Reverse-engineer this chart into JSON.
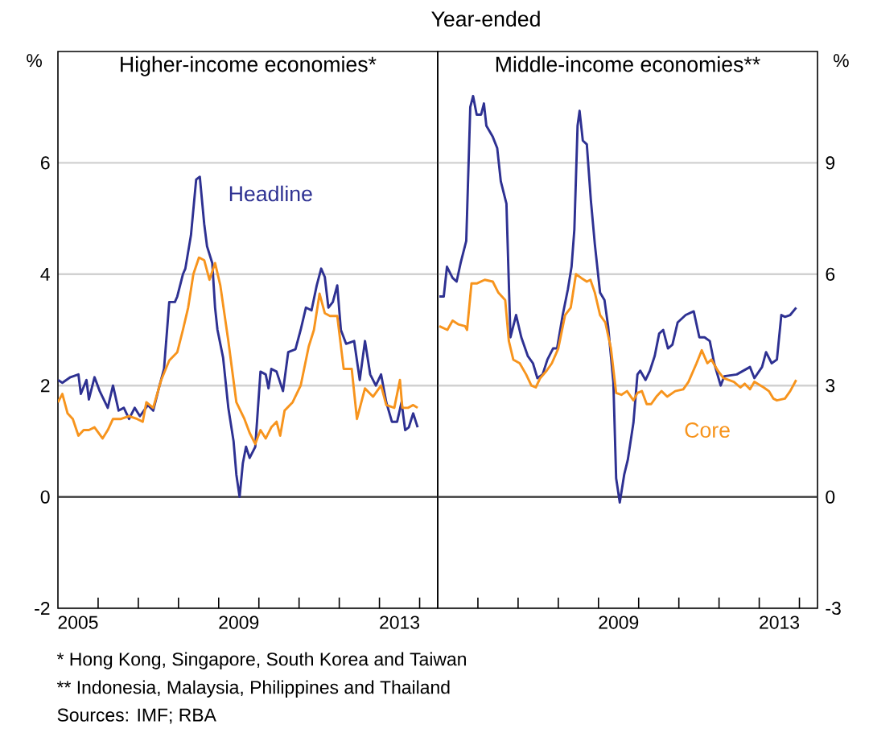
{
  "chart_data": [
    {
      "type": "line",
      "subtitle": "Higher-income economies*",
      "ylabel": "%",
      "xlim": [
        2005,
        2014.45
      ],
      "ylim": [
        -2,
        8
      ],
      "xticks": [
        {
          "value": 2005.5,
          "label": "2005"
        },
        {
          "value": 2006,
          "label": null
        },
        {
          "value": 2007,
          "label": null
        },
        {
          "value": 2008,
          "label": null
        },
        {
          "value": 2009,
          "label": null
        },
        {
          "value": 2009.5,
          "label": "2009"
        },
        {
          "value": 2010,
          "label": null
        },
        {
          "value": 2011,
          "label": null
        },
        {
          "value": 2012,
          "label": null
        },
        {
          "value": 2013,
          "label": null
        },
        {
          "value": 2013.5,
          "label": "2013"
        },
        {
          "value": 2014,
          "label": null
        }
      ],
      "yticks": [
        -2,
        0,
        2,
        4,
        6
      ],
      "grid": "y",
      "ref_lines": [
        {
          "axis": "y",
          "value": 0
        }
      ],
      "series": [
        {
          "name": "Headline",
          "color": "#2e3192",
          "x": [
            2005.0,
            2005.11,
            2005.31,
            2005.51,
            2005.57,
            2005.71,
            2005.77,
            2005.91,
            2006.04,
            2006.24,
            2006.37,
            2006.51,
            2006.64,
            2006.77,
            2006.91,
            2007.04,
            2007.24,
            2007.37,
            2007.51,
            2007.64,
            2007.77,
            2007.91,
            2007.97,
            2008.11,
            2008.17,
            2008.31,
            2008.44,
            2008.53,
            2008.64,
            2008.71,
            2008.84,
            2008.91,
            2008.97,
            2009.11,
            2009.24,
            2009.37,
            2009.44,
            2009.52,
            2009.6,
            2009.68,
            2009.77,
            2009.91,
            2010.04,
            2010.17,
            2010.24,
            2010.31,
            2010.44,
            2010.6,
            2010.73,
            2010.91,
            2011.04,
            2011.17,
            2011.31,
            2011.44,
            2011.55,
            2011.64,
            2011.73,
            2011.84,
            2011.95,
            2012.04,
            2012.17,
            2012.37,
            2012.51,
            2012.64,
            2012.77,
            2012.91,
            2013.04,
            2013.17,
            2013.31,
            2013.44,
            2013.55,
            2013.64,
            2013.73,
            2013.84,
            2013.95
          ],
          "values": [
            2.1,
            2.05,
            2.15,
            2.2,
            1.85,
            2.1,
            1.75,
            2.15,
            1.9,
            1.6,
            2.0,
            1.55,
            1.6,
            1.4,
            1.6,
            1.45,
            1.65,
            1.55,
            1.95,
            2.3,
            3.5,
            3.5,
            3.6,
            4.0,
            4.1,
            4.7,
            5.7,
            5.75,
            4.9,
            4.5,
            4.2,
            3.4,
            3.0,
            2.5,
            1.6,
            1.0,
            0.4,
            0.0,
            0.6,
            0.9,
            0.7,
            0.9,
            2.25,
            2.2,
            1.95,
            2.3,
            2.25,
            1.9,
            2.6,
            2.65,
            3.0,
            3.4,
            3.35,
            3.8,
            4.1,
            3.95,
            3.4,
            3.5,
            3.8,
            3.0,
            2.75,
            2.8,
            2.1,
            2.8,
            2.2,
            2.0,
            2.2,
            1.7,
            1.35,
            1.35,
            1.7,
            1.2,
            1.25,
            1.5,
            1.25
          ]
        },
        {
          "color": "#f7941d",
          "x": [
            2005.0,
            2005.11,
            2005.24,
            2005.37,
            2005.51,
            2005.64,
            2005.77,
            2005.91,
            2006.11,
            2006.24,
            2006.37,
            2006.57,
            2006.77,
            2006.97,
            2007.11,
            2007.2,
            2007.37,
            2007.57,
            2007.77,
            2007.97,
            2008.11,
            2008.24,
            2008.37,
            2008.51,
            2008.64,
            2008.77,
            2008.91,
            2009.04,
            2009.24,
            2009.44,
            2009.64,
            2009.77,
            2009.91,
            2010.04,
            2010.17,
            2010.31,
            2010.44,
            2010.53,
            2010.64,
            2010.84,
            2011.04,
            2011.24,
            2011.37,
            2011.51,
            2011.64,
            2011.77,
            2011.95,
            2012.11,
            2012.31,
            2012.44,
            2012.64,
            2012.84,
            2013.04,
            2013.17,
            2013.37,
            2013.51,
            2013.57,
            2013.71,
            2013.84,
            2013.95
          ],
          "values": [
            1.7,
            1.85,
            1.5,
            1.4,
            1.1,
            1.2,
            1.2,
            1.25,
            1.05,
            1.2,
            1.4,
            1.4,
            1.45,
            1.4,
            1.35,
            1.7,
            1.6,
            2.1,
            2.45,
            2.6,
            3.0,
            3.4,
            4.0,
            4.3,
            4.25,
            3.9,
            4.2,
            3.8,
            2.8,
            1.7,
            1.4,
            1.15,
            0.95,
            1.2,
            1.05,
            1.25,
            1.35,
            1.1,
            1.55,
            1.7,
            2.0,
            2.7,
            3.0,
            3.65,
            3.3,
            3.25,
            3.25,
            2.3,
            2.3,
            1.4,
            1.95,
            1.8,
            2.0,
            1.65,
            1.6,
            2.1,
            1.6,
            1.6,
            1.65,
            1.6
          ]
        }
      ],
      "annotations": [
        "*   Hong Kong, Singapore, South Korea and Taiwan",
        "**  Indonesia, Malaysia, Philippines and Thailand",
        "Sources: IMF; RBA"
      ]
    },
    {
      "type": "line",
      "title": "Year-ended",
      "subtitle": "Middle-income economies**",
      "ylabel": "%",
      "xlim": [
        2005,
        2014.45
      ],
      "ylim": [
        -3,
        12
      ],
      "xticks": [
        {
          "value": 2006,
          "label": null
        },
        {
          "value": 2007,
          "label": null
        },
        {
          "value": 2008,
          "label": null
        },
        {
          "value": 2009,
          "label": null
        },
        {
          "value": 2009.5,
          "label": "2009"
        },
        {
          "value": 2010,
          "label": null
        },
        {
          "value": 2011,
          "label": null
        },
        {
          "value": 2012,
          "label": null
        },
        {
          "value": 2013,
          "label": null
        },
        {
          "value": 2013.5,
          "label": "2013"
        },
        {
          "value": 2014,
          "label": null
        }
      ],
      "yticks": [
        -3,
        0,
        3,
        6,
        9
      ],
      "grid": "y",
      "ref_lines": [
        {
          "axis": "y",
          "value": 0
        }
      ],
      "series": [
        {
          "color": "#2e3192",
          "x": [
            2005.04,
            2005.15,
            2005.23,
            2005.37,
            2005.47,
            2005.57,
            2005.71,
            2005.81,
            2005.88,
            2005.97,
            2006.08,
            2006.15,
            2006.21,
            2006.37,
            2006.48,
            2006.57,
            2006.71,
            2006.81,
            2006.95,
            2007.08,
            2007.24,
            2007.37,
            2007.48,
            2007.61,
            2007.73,
            2007.87,
            2007.97,
            2008.11,
            2008.24,
            2008.33,
            2008.4,
            2008.48,
            2008.53,
            2008.61,
            2008.71,
            2008.81,
            2008.91,
            2009.04,
            2009.15,
            2009.24,
            2009.37,
            2009.44,
            2009.53,
            2009.64,
            2009.73,
            2009.87,
            2009.97,
            2010.04,
            2010.17,
            2010.28,
            2010.4,
            2010.51,
            2010.61,
            2010.73,
            2010.84,
            2010.97,
            2011.17,
            2011.37,
            2011.51,
            2011.64,
            2011.77,
            2011.88,
            2012.04,
            2012.13,
            2012.44,
            2012.77,
            2012.88,
            2013.07,
            2013.17,
            2013.31,
            2013.44,
            2013.55,
            2013.64,
            2013.77,
            2013.92
          ],
          "values": [
            5.4,
            5.4,
            6.2,
            5.9,
            5.8,
            6.3,
            6.9,
            10.5,
            10.8,
            10.3,
            10.3,
            10.6,
            10.0,
            9.7,
            9.4,
            8.5,
            7.9,
            4.3,
            4.9,
            4.3,
            3.8,
            3.6,
            3.2,
            3.3,
            3.7,
            4.0,
            4.0,
            4.9,
            5.6,
            6.2,
            7.2,
            10.0,
            10.4,
            9.6,
            9.5,
            8.0,
            6.8,
            5.5,
            5.3,
            4.6,
            3.1,
            0.5,
            -0.15,
            0.6,
            1.0,
            2.0,
            3.3,
            3.4,
            3.15,
            3.4,
            3.8,
            4.4,
            4.5,
            4.0,
            4.1,
            4.7,
            4.9,
            5.0,
            4.3,
            4.3,
            4.2,
            3.6,
            3.0,
            3.25,
            3.3,
            3.5,
            3.2,
            3.5,
            3.9,
            3.6,
            3.7,
            4.9,
            4.85,
            4.9,
            5.1
          ]
        },
        {
          "name": "Core",
          "color": "#f7941d",
          "x": [
            2005.04,
            2005.24,
            2005.37,
            2005.51,
            2005.68,
            2005.73,
            2005.84,
            2005.97,
            2006.17,
            2006.37,
            2006.51,
            2006.68,
            2006.77,
            2006.88,
            2007.04,
            2007.2,
            2007.33,
            2007.44,
            2007.55,
            2007.71,
            2007.84,
            2008.0,
            2008.17,
            2008.31,
            2008.44,
            2008.57,
            2008.71,
            2008.8,
            2008.91,
            2009.04,
            2009.17,
            2009.31,
            2009.44,
            2009.57,
            2009.71,
            2009.87,
            2009.97,
            2010.08,
            2010.2,
            2010.31,
            2010.44,
            2010.57,
            2010.71,
            2010.91,
            2011.11,
            2011.24,
            2011.44,
            2011.57,
            2011.71,
            2011.81,
            2011.97,
            2012.11,
            2012.37,
            2012.53,
            2012.64,
            2012.77,
            2012.88,
            2013.11,
            2013.24,
            2013.35,
            2013.44,
            2013.64,
            2013.77,
            2013.92
          ],
          "values": [
            4.6,
            4.5,
            4.75,
            4.65,
            4.6,
            4.5,
            5.75,
            5.75,
            5.85,
            5.8,
            5.5,
            5.3,
            4.2,
            3.7,
            3.6,
            3.3,
            3.0,
            2.95,
            3.2,
            3.4,
            3.6,
            4.0,
            4.9,
            5.1,
            6.0,
            5.9,
            5.8,
            5.85,
            5.5,
            4.9,
            4.7,
            4.0,
            2.8,
            2.75,
            2.85,
            2.6,
            2.8,
            2.85,
            2.5,
            2.5,
            2.7,
            2.85,
            2.7,
            2.85,
            2.9,
            3.1,
            3.6,
            3.95,
            3.6,
            3.7,
            3.4,
            3.2,
            3.1,
            2.95,
            3.05,
            2.9,
            3.1,
            2.95,
            2.85,
            2.65,
            2.6,
            2.65,
            2.85,
            3.15
          ]
        }
      ]
    }
  ]
}
